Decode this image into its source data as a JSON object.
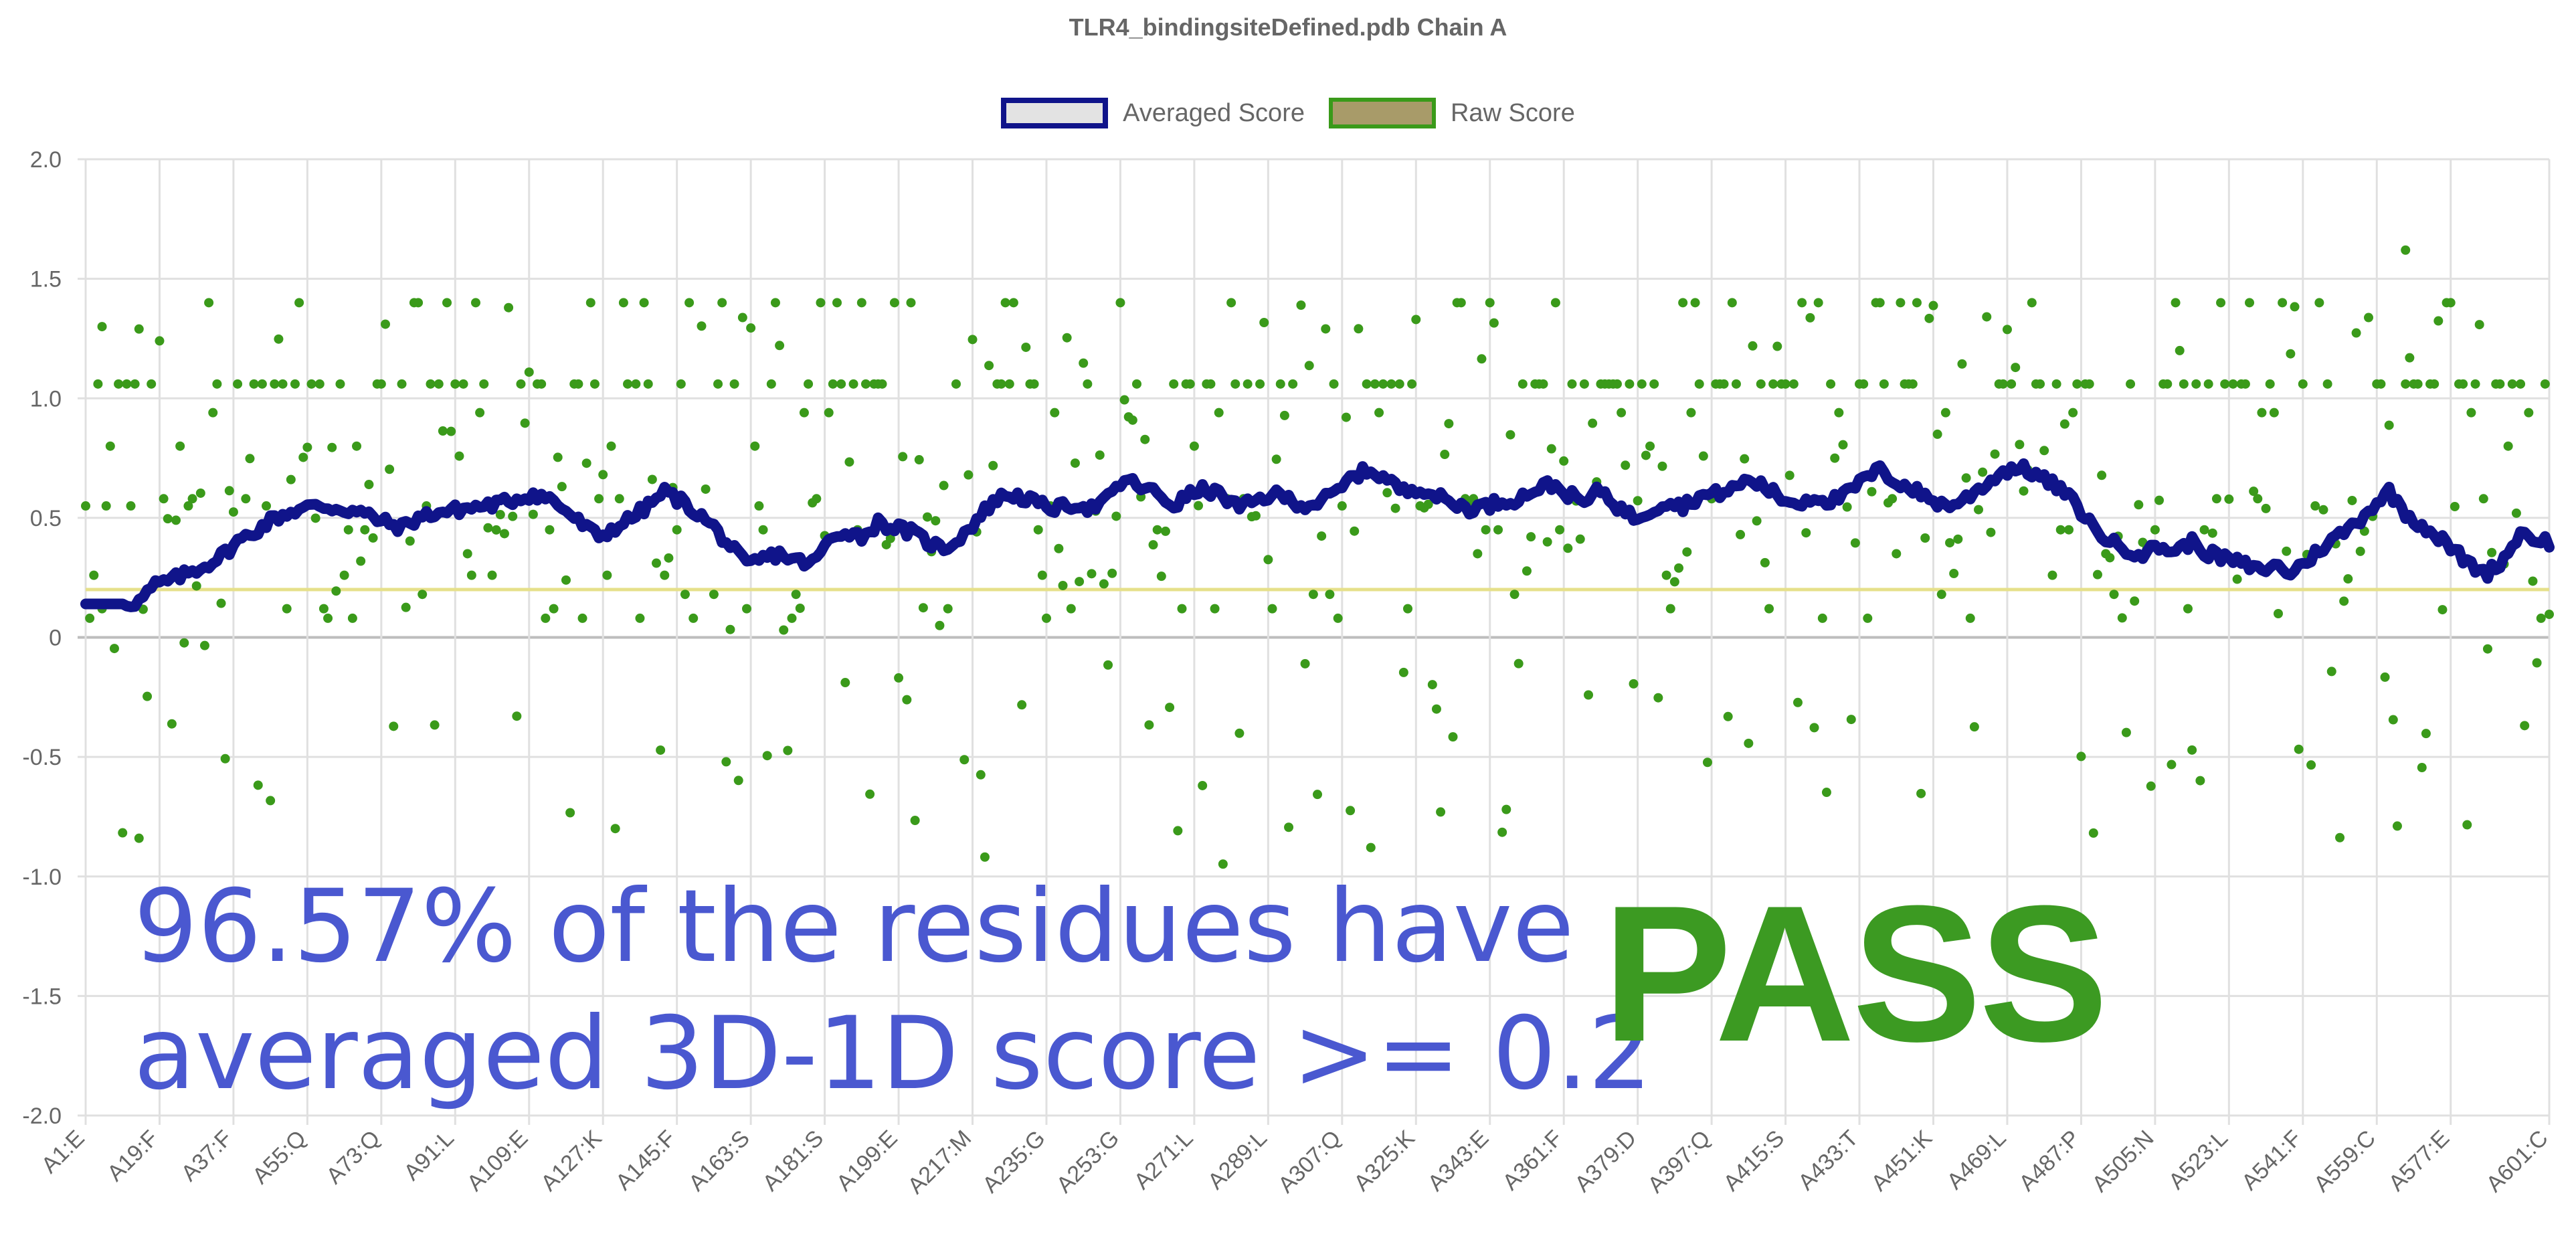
{
  "chart_data": {
    "type": "line",
    "title": "TLR4_bindingsiteDefined.pdb Chain A",
    "xlabel": "",
    "ylabel": "",
    "ylim": [
      -2.0,
      2.0
    ],
    "y_ticks": [
      "2.0",
      "1.5",
      "1.0",
      "0.5",
      "0",
      "-0.5",
      "-1.0",
      "-1.5",
      "-2.0"
    ],
    "x_tick_labels": [
      "A1:E",
      "A19:F",
      "A37:F",
      "A55:Q",
      "A73:Q",
      "A91:L",
      "A109:E",
      "A127:K",
      "A145:F",
      "A163:S",
      "A181:S",
      "A199:E",
      "A217:M",
      "A235:G",
      "A253:G",
      "A271:L",
      "A289:L",
      "A307:Q",
      "A325:K",
      "A343:E",
      "A361:F",
      "A379:D",
      "A397:Q",
      "A415:S",
      "A433:T",
      "A451:K",
      "A469:L",
      "A487:P",
      "A505:N",
      "A523:L",
      "A541:F",
      "A559:C",
      "A577:E",
      "A601:C"
    ],
    "x_tick_residues": [
      1,
      19,
      37,
      55,
      73,
      91,
      109,
      127,
      145,
      163,
      181,
      199,
      217,
      235,
      253,
      271,
      289,
      307,
      325,
      343,
      361,
      379,
      397,
      415,
      433,
      451,
      469,
      487,
      505,
      523,
      541,
      559,
      577,
      601
    ],
    "x_range": [
      1,
      601
    ],
    "grid": true,
    "legend_position": "top",
    "threshold": 0.2,
    "series": [
      {
        "name": "Averaged Score",
        "color": "#10148a",
        "x": [
          1,
          6,
          10,
          14,
          18,
          22,
          26,
          30,
          34,
          38,
          42,
          46,
          50,
          54,
          58,
          62,
          66,
          70,
          74,
          78,
          82,
          86,
          90,
          94,
          98,
          102,
          106,
          110,
          114,
          118,
          122,
          126,
          130,
          134,
          138,
          142,
          146,
          150,
          154,
          158,
          162,
          166,
          170,
          174,
          178,
          182,
          186,
          190,
          194,
          198,
          202,
          206,
          210,
          214,
          218,
          222,
          226,
          230,
          234,
          238,
          242,
          246,
          250,
          254,
          258,
          262,
          266,
          270,
          274,
          278,
          282,
          286,
          290,
          294,
          298,
          302,
          306,
          310,
          314,
          318,
          322,
          326,
          330,
          334,
          338,
          342,
          346,
          350,
          354,
          358,
          362,
          366,
          370,
          374,
          378,
          382,
          386,
          390,
          394,
          398,
          402,
          406,
          410,
          414,
          418,
          422,
          426,
          430,
          434,
          438,
          442,
          446,
          450,
          454,
          458,
          462,
          466,
          470,
          474,
          478,
          482,
          486,
          490,
          494,
          498,
          502,
          506,
          510,
          514,
          518,
          522,
          526,
          530,
          534,
          538,
          542,
          546,
          550,
          554,
          558,
          562,
          566,
          570,
          574,
          578,
          582,
          586,
          590,
          594,
          598,
          601
        ],
        "values": [
          0.14,
          0.14,
          0.14,
          0.15,
          0.22,
          0.24,
          0.27,
          0.3,
          0.34,
          0.4,
          0.44,
          0.49,
          0.52,
          0.54,
          0.55,
          0.54,
          0.53,
          0.51,
          0.48,
          0.46,
          0.5,
          0.52,
          0.53,
          0.54,
          0.55,
          0.56,
          0.58,
          0.6,
          0.58,
          0.53,
          0.47,
          0.42,
          0.46,
          0.5,
          0.55,
          0.61,
          0.57,
          0.52,
          0.46,
          0.38,
          0.3,
          0.33,
          0.35,
          0.32,
          0.31,
          0.4,
          0.45,
          0.42,
          0.48,
          0.46,
          0.44,
          0.4,
          0.37,
          0.42,
          0.49,
          0.57,
          0.6,
          0.58,
          0.55,
          0.54,
          0.56,
          0.54,
          0.58,
          0.66,
          0.63,
          0.6,
          0.55,
          0.6,
          0.62,
          0.59,
          0.54,
          0.57,
          0.6,
          0.58,
          0.55,
          0.57,
          0.61,
          0.68,
          0.7,
          0.66,
          0.61,
          0.63,
          0.59,
          0.56,
          0.54,
          0.55,
          0.57,
          0.58,
          0.62,
          0.64,
          0.6,
          0.56,
          0.62,
          0.55,
          0.5,
          0.53,
          0.57,
          0.55,
          0.59,
          0.6,
          0.62,
          0.66,
          0.63,
          0.58,
          0.56,
          0.59,
          0.57,
          0.6,
          0.66,
          0.7,
          0.65,
          0.62,
          0.58,
          0.55,
          0.57,
          0.62,
          0.67,
          0.71,
          0.7,
          0.66,
          0.62,
          0.55,
          0.46,
          0.4,
          0.37,
          0.35,
          0.38,
          0.36,
          0.4,
          0.35,
          0.33,
          0.31,
          0.28,
          0.3,
          0.27,
          0.32,
          0.38,
          0.43,
          0.48,
          0.55,
          0.61,
          0.52,
          0.47,
          0.42,
          0.36,
          0.3,
          0.27,
          0.33,
          0.44,
          0.41,
          0.4
        ]
      },
      {
        "name": "Raw Score",
        "color": "#3a9a1a",
        "points_generated": true
      }
    ],
    "annotations": [
      "96.57% of the residues have",
      "averaged 3D-1D score >= 0.2",
      "PASS"
    ]
  },
  "colors": {
    "average_line": "#10148a",
    "raw_points": "#3a9a1a",
    "threshold_line": "#e6e08a",
    "grid": "#e0e0e0",
    "zero_line": "#bdbdbd",
    "tick_text": "#666666",
    "pct_text": "#4a58d0",
    "pass_text": "#3c9a22"
  }
}
